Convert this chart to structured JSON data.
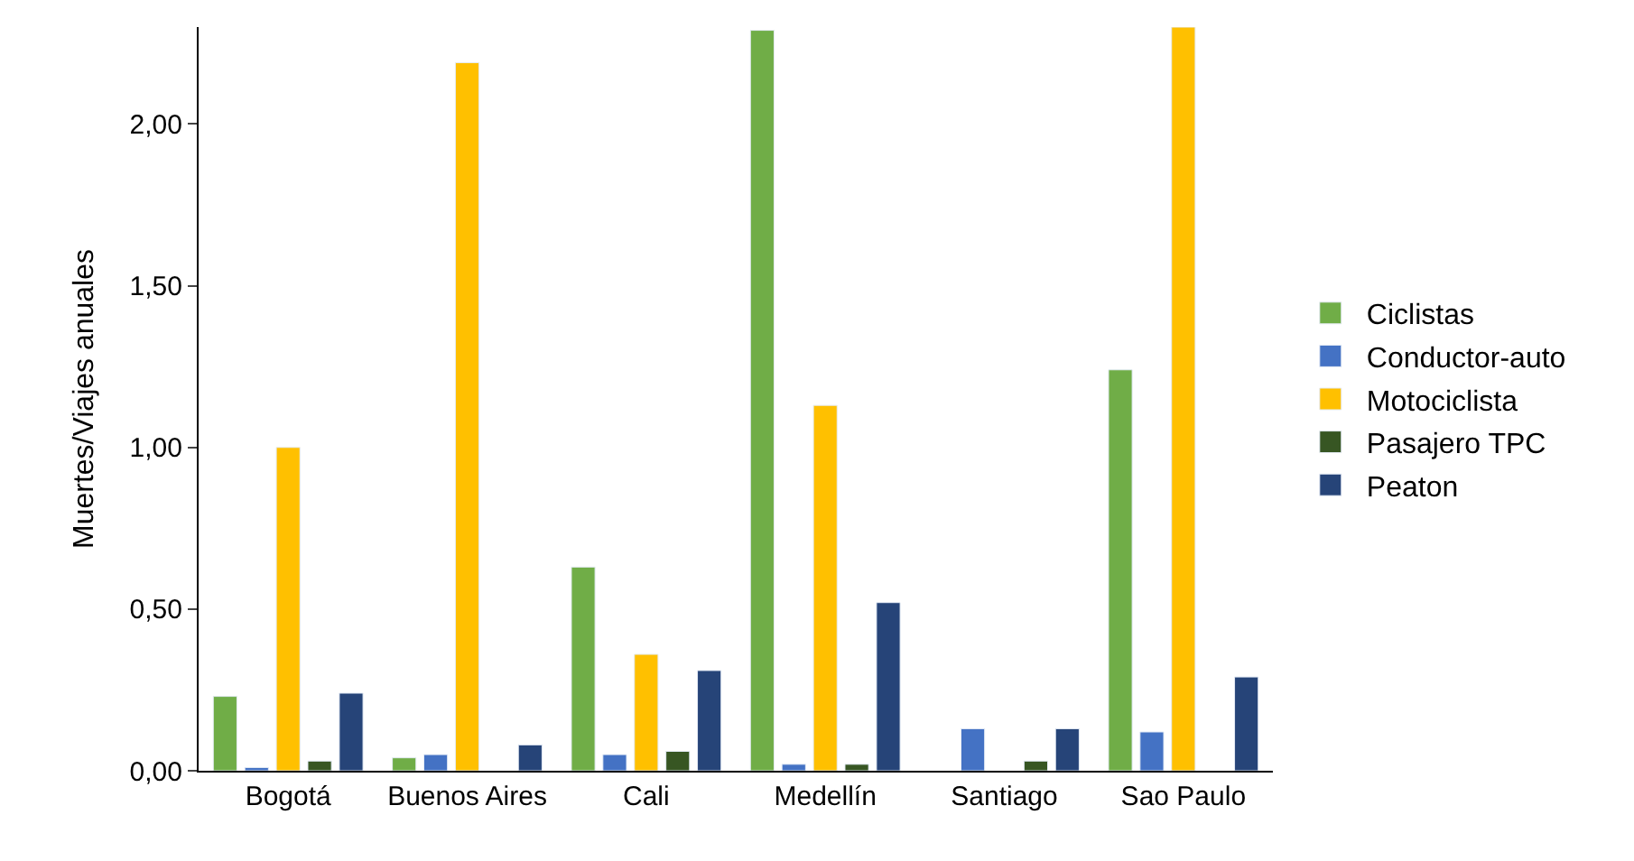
{
  "chart_data": {
    "type": "bar",
    "ylabel": "Muertes/Viajes anuales",
    "categories": [
      "Bogotá",
      "Buenos Aires",
      "Cali",
      "Medellín",
      "Santiago",
      "Sao Paulo"
    ],
    "series": [
      {
        "name": "Ciclistas",
        "color": "#70ad47",
        "values": [
          0.23,
          0.04,
          0.63,
          2.29,
          null,
          1.24
        ]
      },
      {
        "name": "Conductor-auto",
        "color": "#4472c4",
        "values": [
          0.01,
          0.05,
          0.05,
          0.02,
          0.13,
          0.12
        ]
      },
      {
        "name": "Motociclista",
        "color": "#ffc000",
        "values": [
          1.0,
          2.19,
          0.36,
          1.13,
          null,
          2.3
        ]
      },
      {
        "name": "Pasajero TPC",
        "color": "#375623",
        "values": [
          0.03,
          null,
          0.06,
          0.02,
          0.03,
          null
        ]
      },
      {
        "name": "Peaton",
        "color": "#264478",
        "values": [
          0.24,
          0.08,
          0.31,
          0.52,
          0.13,
          0.29
        ]
      }
    ],
    "ylim": [
      0,
      2.3
    ],
    "yticks": [
      {
        "value": 0,
        "label": "0,00"
      },
      {
        "value": 0.5,
        "label": "0,50"
      },
      {
        "value": 1,
        "label": "1,00"
      },
      {
        "value": 1.5,
        "label": "1,50"
      },
      {
        "value": 2,
        "label": "2,00"
      }
    ],
    "grid": false,
    "legend": "right"
  }
}
